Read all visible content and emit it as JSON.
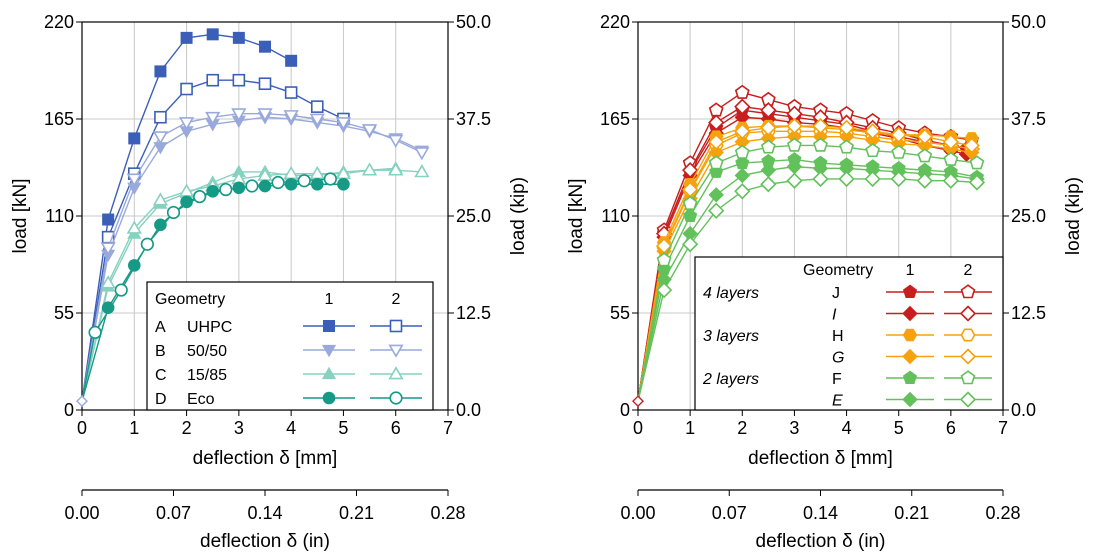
{
  "chart_data": [
    {
      "type": "line",
      "xlabel": "deflection δ [mm]",
      "ylabel": "load [kN]",
      "ylabel2": "load (kip)",
      "xlabel2": "deflection δ (in)",
      "xlim": [
        0,
        7
      ],
      "ylim": [
        0,
        220
      ],
      "ylim2": [
        0,
        50
      ],
      "xlim2": [
        0,
        0.28
      ],
      "xticks": [
        "0",
        "1",
        "2",
        "3",
        "4",
        "5",
        "6",
        "7"
      ],
      "yticks": [
        "0",
        "55",
        "110",
        "165",
        "220"
      ],
      "y2ticks": [
        "0.0",
        "12.5",
        "25.0",
        "37.5",
        "50.0"
      ],
      "x2ticks": [
        "0.00",
        "0.07",
        "0.14",
        "0.21",
        "0.28"
      ],
      "grid": true,
      "legend_position": "bottom-right",
      "legend": {
        "header": [
          "Geometry",
          "1",
          "2"
        ],
        "rows": [
          {
            "id": "A",
            "name": "UHPC",
            "color": "#3b5fb8",
            "marker": "square"
          },
          {
            "id": "B",
            "name": "50/50",
            "color": "#9aa9dc",
            "marker": "triangle-down"
          },
          {
            "id": "C",
            "name": "15/85",
            "color": "#86d1c0",
            "marker": "triangle-up"
          },
          {
            "id": "D",
            "name": "Eco",
            "color": "#159a85",
            "marker": "circle"
          }
        ]
      },
      "series": [
        {
          "legend_ref": "A",
          "geometry": "1",
          "color": "#3b5fb8",
          "marker": "square",
          "filled": true,
          "x": [
            0,
            0.5,
            1,
            1.5,
            2,
            2.5,
            3,
            3.5,
            4
          ],
          "y": [
            5,
            108,
            154,
            192,
            211,
            213,
            211,
            206,
            198
          ]
        },
        {
          "legend_ref": "A",
          "geometry": "2",
          "color": "#3b5fb8",
          "marker": "square",
          "filled": false,
          "x": [
            0,
            0.5,
            1,
            1.5,
            2,
            2.5,
            3,
            3.5,
            4,
            4.5,
            5
          ],
          "y": [
            5,
            98,
            134,
            166,
            182,
            187,
            187,
            185,
            180,
            172,
            165
          ]
        },
        {
          "legend_ref": "B",
          "geometry": "1",
          "color": "#9aa9dc",
          "marker": "triangle-down",
          "filled": true,
          "x": [
            0,
            0.5,
            1,
            1.5,
            2,
            2.5,
            3,
            3.5,
            4,
            4.5,
            5,
            5.5,
            6,
            6.5
          ],
          "y": [
            5,
            88,
            126,
            149,
            158,
            162,
            164,
            166,
            165,
            163,
            161,
            158,
            154,
            147
          ]
        },
        {
          "legend_ref": "B",
          "geometry": "2",
          "color": "#9aa9dc",
          "marker": "triangle-down",
          "filled": false,
          "x": [
            0,
            0.5,
            1,
            1.5,
            2,
            2.5,
            3,
            3.5,
            4,
            4.5,
            5,
            5.5,
            6,
            6.5
          ],
          "y": [
            5,
            92,
            131,
            155,
            163,
            166,
            168,
            168,
            167,
            165,
            163,
            159,
            153,
            146
          ]
        },
        {
          "legend_ref": "C",
          "geometry": "1",
          "color": "#86d1c0",
          "marker": "triangle-up",
          "filled": true,
          "x": [
            0,
            0.5,
            1,
            1.5,
            2,
            2.5,
            3,
            3.5,
            4,
            4.5,
            5,
            5.5,
            6
          ],
          "y": [
            5,
            70,
            100,
            117,
            123,
            129,
            135,
            135,
            133,
            133,
            135,
            136,
            137
          ]
        },
        {
          "legend_ref": "C",
          "geometry": "2",
          "color": "#86d1c0",
          "marker": "triangle-up",
          "filled": false,
          "x": [
            0,
            0.5,
            1,
            1.5,
            2,
            2.5,
            3,
            3.5,
            4,
            4.5,
            5,
            5.5,
            6,
            6.5
          ],
          "y": [
            5,
            72,
            103,
            119,
            124,
            127,
            131,
            133,
            134,
            134,
            134,
            136,
            136,
            135
          ]
        },
        {
          "legend_ref": "D",
          "geometry": "1",
          "color": "#159a85",
          "marker": "circle",
          "filled": true,
          "x": [
            0,
            0.5,
            1,
            1.5,
            2,
            2.5,
            3,
            3.5,
            4,
            4.5,
            5
          ],
          "y": [
            5,
            58,
            82,
            105,
            118,
            124,
            126,
            127,
            128,
            128,
            128
          ]
        },
        {
          "legend_ref": "D",
          "geometry": "2",
          "color": "#159a85",
          "marker": "circle",
          "filled": false,
          "x": [
            0,
            0.25,
            0.75,
            1.25,
            1.75,
            2.25,
            2.75,
            3.25,
            3.75,
            4.25,
            4.75
          ],
          "y": [
            5,
            44,
            68,
            94,
            112,
            121,
            125,
            127,
            129,
            130,
            131
          ]
        }
      ]
    },
    {
      "type": "line",
      "xlabel": "deflection δ [mm]",
      "ylabel": "load [kN]",
      "ylabel2": "load (kip)",
      "xlabel2": "deflection δ (in)",
      "xlim": [
        0,
        7
      ],
      "ylim": [
        0,
        220
      ],
      "ylim2": [
        0,
        50
      ],
      "xlim2": [
        0,
        0.28
      ],
      "xticks": [
        "0",
        "1",
        "2",
        "3",
        "4",
        "5",
        "6",
        "7"
      ],
      "yticks": [
        "0",
        "55",
        "110",
        "165",
        "220"
      ],
      "y2ticks": [
        "0.0",
        "12.5",
        "25.0",
        "37.5",
        "50.0"
      ],
      "x2ticks": [
        "0.00",
        "0.07",
        "0.14",
        "0.21",
        "0.28"
      ],
      "grid": true,
      "legend_position": "bottom-right",
      "legend": {
        "header": [
          "Geometry",
          "1",
          "2"
        ],
        "rows": [
          {
            "group": "4 layers",
            "id": "J",
            "italic": false,
            "color": "#c81e1e",
            "marker": "pentagon"
          },
          {
            "group": "",
            "id": "I",
            "italic": true,
            "color": "#c81e1e",
            "marker": "diamond"
          },
          {
            "group": "3 layers",
            "id": "H",
            "italic": false,
            "color": "#f5a20c",
            "marker": "hexagon"
          },
          {
            "group": "",
            "id": "G",
            "italic": true,
            "color": "#f5a20c",
            "marker": "diamond"
          },
          {
            "group": "2 layers",
            "id": "F",
            "italic": false,
            "color": "#62c15a",
            "marker": "pentagon"
          },
          {
            "group": "",
            "id": "E",
            "italic": true,
            "color": "#62c15a",
            "marker": "diamond"
          }
        ]
      },
      "series": [
        {
          "legend_ref": "J",
          "geometry": "1",
          "color": "#c81e1e",
          "marker": "pentagon",
          "filled": true,
          "x": [
            0,
            0.5,
            1,
            1.5,
            2,
            2.5,
            3,
            3.5,
            4,
            4.5,
            5,
            5.5,
            6,
            6.3
          ],
          "y": [
            5,
            100,
            135,
            160,
            170,
            168,
            166,
            164,
            162,
            158,
            155,
            152,
            150,
            148
          ]
        },
        {
          "legend_ref": "J",
          "geometry": "2",
          "color": "#c81e1e",
          "marker": "pentagon",
          "filled": false,
          "x": [
            0,
            0.5,
            1,
            1.5,
            2,
            2.5,
            3,
            3.5,
            4,
            4.5,
            5,
            5.5,
            6,
            6.4
          ],
          "y": [
            5,
            102,
            140,
            170,
            180,
            176,
            172,
            170,
            168,
            164,
            160,
            157,
            155,
            153
          ]
        },
        {
          "legend_ref": "I",
          "geometry": "1",
          "color": "#c81e1e",
          "marker": "diamond",
          "filled": true,
          "x": [
            0,
            0.5,
            1,
            1.5,
            2,
            2.5,
            3,
            3.5,
            4,
            4.5,
            5,
            5.5,
            6,
            6.3
          ],
          "y": [
            5,
            98,
            133,
            157,
            166,
            165,
            163,
            162,
            160,
            157,
            154,
            150,
            147,
            145
          ]
        },
        {
          "legend_ref": "I",
          "geometry": "2",
          "color": "#c81e1e",
          "marker": "diamond",
          "filled": false,
          "x": [
            0,
            0.5,
            1,
            1.5,
            2,
            2.5,
            3,
            3.5,
            4,
            4.5,
            5,
            5.5,
            6,
            6.4
          ],
          "y": [
            5,
            100,
            136,
            163,
            172,
            170,
            168,
            166,
            163,
            160,
            157,
            153,
            150,
            148
          ]
        },
        {
          "legend_ref": "H",
          "geometry": "1",
          "color": "#f5a20c",
          "marker": "hexagon",
          "filled": true,
          "x": [
            0,
            0.5,
            1,
            1.5,
            2,
            2.5,
            3,
            3.5,
            4,
            4.5,
            5,
            5.5,
            6,
            6.4
          ],
          "y": [
            5,
            95,
            128,
            155,
            160,
            161,
            161,
            160,
            159,
            157,
            156,
            156,
            155,
            154
          ]
        },
        {
          "legend_ref": "H",
          "geometry": "2",
          "color": "#f5a20c",
          "marker": "hexagon",
          "filled": false,
          "x": [
            0,
            0.5,
            1,
            1.5,
            2,
            2.5,
            3,
            3.5,
            4,
            4.5,
            5,
            5.5,
            6,
            6.4
          ],
          "y": [
            5,
            92,
            124,
            150,
            157,
            158,
            158,
            158,
            157,
            155,
            153,
            152,
            150,
            148
          ]
        },
        {
          "legend_ref": "G",
          "geometry": "1",
          "color": "#f5a20c",
          "marker": "diamond",
          "filled": true,
          "x": [
            0,
            0.5,
            1,
            1.5,
            2,
            2.5,
            3,
            3.5,
            4,
            4.5,
            5,
            5.5,
            6,
            6.4
          ],
          "y": [
            5,
            90,
            120,
            146,
            152,
            154,
            155,
            155,
            155,
            153,
            151,
            150,
            148,
            146
          ]
        },
        {
          "legend_ref": "G",
          "geometry": "2",
          "color": "#f5a20c",
          "marker": "diamond",
          "filled": false,
          "x": [
            0,
            0.5,
            1,
            1.5,
            2,
            2.5,
            3,
            3.5,
            4,
            4.5,
            5,
            5.5,
            6,
            6.4
          ],
          "y": [
            5,
            93,
            125,
            152,
            158,
            160,
            161,
            161,
            160,
            158,
            156,
            155,
            152,
            150
          ]
        },
        {
          "legend_ref": "F",
          "geometry": "1",
          "color": "#62c15a",
          "marker": "pentagon",
          "filled": true,
          "x": [
            0,
            0.5,
            1,
            1.5,
            2,
            2.5,
            3,
            3.5,
            4,
            4.5,
            5,
            5.5,
            6,
            6.5
          ],
          "y": [
            5,
            80,
            110,
            135,
            140,
            141,
            142,
            140,
            139,
            138,
            137,
            136,
            135,
            132
          ]
        },
        {
          "legend_ref": "F",
          "geometry": "2",
          "color": "#62c15a",
          "marker": "pentagon",
          "filled": false,
          "x": [
            0,
            0.5,
            1,
            1.5,
            2,
            2.5,
            3,
            3.5,
            4,
            4.5,
            5,
            5.5,
            6,
            6.5
          ],
          "y": [
            5,
            85,
            117,
            140,
            146,
            149,
            150,
            150,
            149,
            147,
            146,
            144,
            142,
            140
          ]
        },
        {
          "legend_ref": "E",
          "geometry": "1",
          "color": "#62c15a",
          "marker": "diamond",
          "filled": true,
          "x": [
            0,
            0.5,
            1,
            1.5,
            2,
            2.5,
            3,
            3.5,
            4,
            4.5,
            5,
            5.5,
            6,
            6.5
          ],
          "y": [
            5,
            74,
            100,
            122,
            133,
            136,
            138,
            137,
            137,
            136,
            135,
            134,
            133,
            131
          ]
        },
        {
          "legend_ref": "E",
          "geometry": "2",
          "color": "#62c15a",
          "marker": "diamond",
          "filled": false,
          "x": [
            0,
            0.5,
            1,
            1.5,
            2,
            2.5,
            3,
            3.5,
            4,
            4.5,
            5,
            5.5,
            6,
            6.5
          ],
          "y": [
            5,
            68,
            94,
            113,
            124,
            128,
            130,
            131,
            131,
            131,
            131,
            130,
            130,
            129
          ]
        }
      ]
    }
  ]
}
